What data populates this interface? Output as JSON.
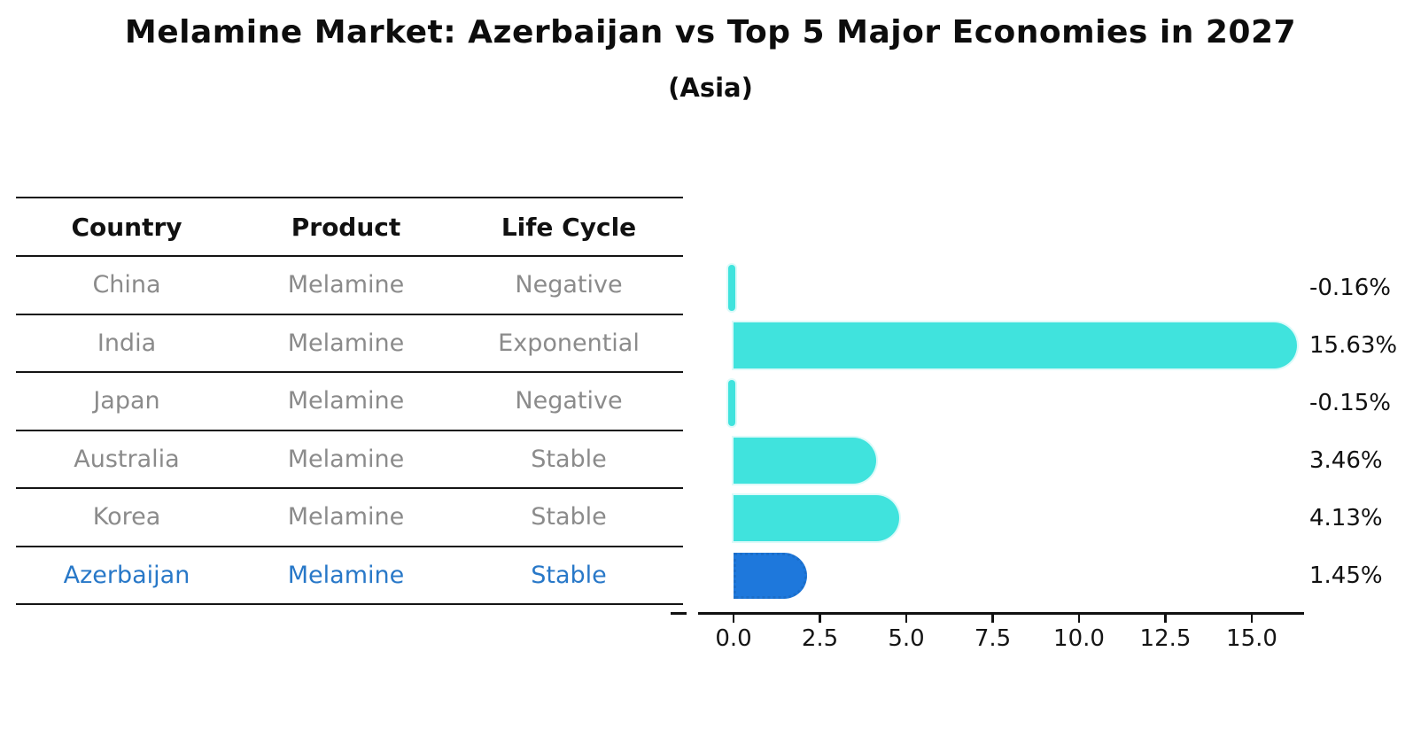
{
  "title": "Melamine Market: Azerbaijan vs Top 5 Major Economies in 2027",
  "subtitle": "(Asia)",
  "table": {
    "headers": [
      "Country",
      "Product",
      "Life Cycle"
    ],
    "rows": [
      {
        "country": "China",
        "product": "Melamine",
        "life_cycle": "Negative",
        "highlight": false
      },
      {
        "country": "India",
        "product": "Melamine",
        "life_cycle": "Exponential",
        "highlight": false
      },
      {
        "country": "Japan",
        "product": "Melamine",
        "life_cycle": "Negative",
        "highlight": false
      },
      {
        "country": "Australia",
        "product": "Melamine",
        "life_cycle": "Stable",
        "highlight": false
      },
      {
        "country": "Korea",
        "product": "Melamine",
        "life_cycle": "Stable",
        "highlight": false
      },
      {
        "country": "Azerbaijan",
        "product": "Melamine",
        "life_cycle": "Stable",
        "highlight": true
      }
    ]
  },
  "chart_data": {
    "type": "bar",
    "orientation": "horizontal",
    "title": "Melamine Market: Azerbaijan vs Top 5 Major Economies in 2027",
    "subtitle": "(Asia)",
    "categories": [
      "China",
      "India",
      "Japan",
      "Australia",
      "Korea",
      "Azerbaijan"
    ],
    "values": [
      -0.16,
      15.63,
      -0.15,
      3.46,
      4.13,
      1.45
    ],
    "value_labels": [
      "-0.16%",
      "15.63%",
      "-0.15%",
      "3.46%",
      "4.13%",
      "1.45%"
    ],
    "highlight_index": 5,
    "xtick_values": [
      0.0,
      2.5,
      5.0,
      7.5,
      10.0,
      12.5,
      15.0
    ],
    "xtick_labels": [
      "0.0",
      "2.5",
      "5.0",
      "7.5",
      "10.0",
      "12.5",
      "15.0"
    ],
    "xlim": [
      -1.0,
      16.5
    ],
    "grid": false,
    "legend": null,
    "colors": {
      "bar": "#40E3DD",
      "highlight_bar": "#1E78DC",
      "highlight_border": "#1B6EC9",
      "highlight_text": "#2878C8",
      "table_text": "#8B8B8B",
      "header_text": "#111111",
      "axis": "#111111"
    }
  }
}
